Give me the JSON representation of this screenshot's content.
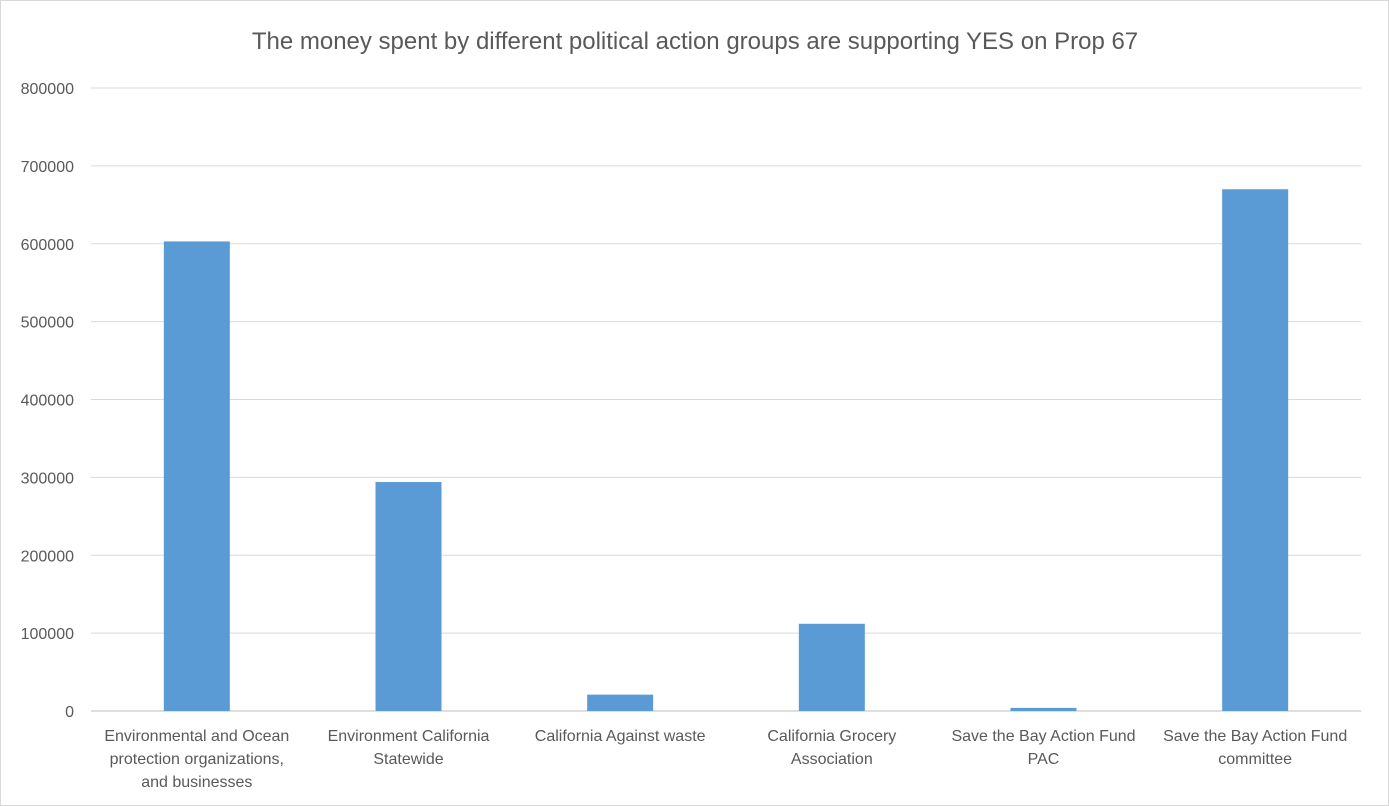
{
  "chart_data": {
    "type": "bar",
    "title": "The money spent by different political action groups are supporting YES on Prop 67",
    "xlabel": "",
    "ylabel": "",
    "ylim": [
      0,
      800000
    ],
    "yticks": [
      "0",
      "100000",
      "200000",
      "300000",
      "400000",
      "500000",
      "600000",
      "700000",
      "800000"
    ],
    "grid": true,
    "legend": "none",
    "bar_color": "#5b9bd5",
    "categories": [
      [
        "Environmental and Ocean",
        "protection organizations,",
        "and businesses"
      ],
      [
        "Environment California",
        "Statewide"
      ],
      [
        "California Against waste"
      ],
      [
        "California Grocery",
        "Association"
      ],
      [
        "Save the Bay Action Fund",
        "PAC"
      ],
      [
        "Save the Bay Action Fund",
        "committee"
      ]
    ],
    "values": [
      603000,
      294000,
      21000,
      112000,
      4000,
      670000
    ]
  }
}
